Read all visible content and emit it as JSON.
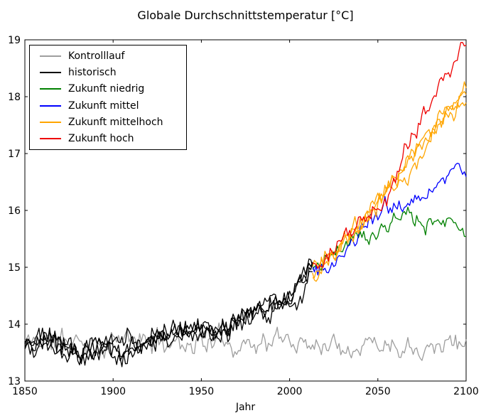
{
  "chart_data": {
    "type": "line",
    "title": "Globale Durchschnittstemperatur [°C]",
    "xlabel": "Jahr",
    "ylabel": "",
    "xlim": [
      1850,
      2100
    ],
    "ylim": [
      13,
      19
    ],
    "xticks": [
      1850,
      1900,
      1950,
      2000,
      2050,
      2100
    ],
    "yticks": [
      13,
      14,
      15,
      16,
      17,
      18,
      19
    ],
    "grid": false,
    "legend_position": "upper left",
    "background": "#ffffff",
    "frame_color": "#000000",
    "legend": [
      {
        "label": "Kontrolllauf",
        "color": "#9e9e9e"
      },
      {
        "label": "historisch",
        "color": "#000000"
      },
      {
        "label": "Zukunft niedrig",
        "color": "#008000"
      },
      {
        "label": "Zukunft mittel",
        "color": "#0000ff"
      },
      {
        "label": "Zukunft mittelhoch",
        "color": "#ffa500"
      },
      {
        "label": "Zukunft hoch",
        "color": "#ee0000"
      }
    ],
    "series": [
      {
        "name": "kontrolllauf",
        "label": "Kontrolllauf",
        "color": "#9e9e9e",
        "seed": 11,
        "noise": 1.0,
        "offset": 0,
        "range": [
          1850,
          2100
        ],
        "anchors": [
          [
            1850,
            13.7
          ],
          [
            2100,
            13.7
          ]
        ]
      },
      {
        "name": "historisch-1",
        "label": "historisch",
        "color": "#000000",
        "seed": 47,
        "noise": 1.0,
        "offset": -0.05,
        "range": [
          1850,
          2013
        ],
        "anchors": [
          [
            1850,
            13.66
          ],
          [
            1861,
            13.74
          ],
          [
            1872,
            13.6
          ],
          [
            1884,
            13.52
          ],
          [
            1895,
            13.66
          ],
          [
            1906,
            13.6
          ],
          [
            1916,
            13.66
          ],
          [
            1926,
            13.76
          ],
          [
            1936,
            13.84
          ],
          [
            1946,
            13.9
          ],
          [
            1956,
            13.94
          ],
          [
            1966,
            14.0
          ],
          [
            1976,
            14.12
          ],
          [
            1986,
            14.28
          ],
          [
            1996,
            14.46
          ],
          [
            2004,
            14.6
          ],
          [
            2013,
            14.95
          ]
        ]
      },
      {
        "name": "historisch-2",
        "label": "historisch",
        "color": "#000000",
        "seed": 83,
        "noise": 1.0,
        "offset": 0,
        "range": [
          1850,
          2013
        ],
        "anchors": [
          [
            1850,
            13.66
          ],
          [
            1861,
            13.74
          ],
          [
            1872,
            13.6
          ],
          [
            1884,
            13.52
          ],
          [
            1895,
            13.66
          ],
          [
            1906,
            13.6
          ],
          [
            1916,
            13.66
          ],
          [
            1926,
            13.76
          ],
          [
            1936,
            13.84
          ],
          [
            1946,
            13.9
          ],
          [
            1956,
            13.94
          ],
          [
            1966,
            14.0
          ],
          [
            1976,
            14.12
          ],
          [
            1986,
            14.28
          ],
          [
            1996,
            14.46
          ],
          [
            2004,
            14.6
          ],
          [
            2013,
            14.95
          ]
        ]
      },
      {
        "name": "historisch-3",
        "label": "historisch",
        "color": "#000000",
        "seed": 129,
        "noise": 1.0,
        "offset": 0.05,
        "range": [
          1850,
          2013
        ],
        "anchors": [
          [
            1850,
            13.66
          ],
          [
            1861,
            13.74
          ],
          [
            1872,
            13.6
          ],
          [
            1884,
            13.52
          ],
          [
            1895,
            13.66
          ],
          [
            1906,
            13.6
          ],
          [
            1916,
            13.66
          ],
          [
            1926,
            13.76
          ],
          [
            1936,
            13.84
          ],
          [
            1946,
            13.9
          ],
          [
            1956,
            13.94
          ],
          [
            1966,
            14.0
          ],
          [
            1976,
            14.12
          ],
          [
            1986,
            14.28
          ],
          [
            1996,
            14.46
          ],
          [
            2004,
            14.6
          ],
          [
            2013,
            14.95
          ]
        ]
      },
      {
        "name": "historisch-4",
        "label": "historisch",
        "color": "#000000",
        "seed": 215,
        "noise": 1.0,
        "offset": -0.02,
        "range": [
          1850,
          2013
        ],
        "anchors": [
          [
            1850,
            13.66
          ],
          [
            1861,
            13.74
          ],
          [
            1872,
            13.6
          ],
          [
            1884,
            13.52
          ],
          [
            1895,
            13.66
          ],
          [
            1906,
            13.6
          ],
          [
            1916,
            13.66
          ],
          [
            1926,
            13.76
          ],
          [
            1936,
            13.84
          ],
          [
            1946,
            13.9
          ],
          [
            1956,
            13.94
          ],
          [
            1966,
            14.0
          ],
          [
            1976,
            14.12
          ],
          [
            1986,
            14.28
          ],
          [
            1996,
            14.46
          ],
          [
            2004,
            14.6
          ],
          [
            2013,
            14.95
          ]
        ]
      },
      {
        "name": "zukunft-niedrig",
        "label": "Zukunft niedrig",
        "color": "#008000",
        "seed": 321,
        "noise": 0.85,
        "offset": 0,
        "range": [
          2013,
          2100
        ],
        "anchors": [
          [
            2013,
            14.95
          ],
          [
            2025,
            15.28
          ],
          [
            2040,
            15.55
          ],
          [
            2055,
            15.72
          ],
          [
            2068,
            15.82
          ],
          [
            2080,
            15.8
          ],
          [
            2090,
            15.68
          ],
          [
            2100,
            15.6
          ]
        ]
      },
      {
        "name": "zukunft-mittel",
        "label": "Zukunft mittel",
        "color": "#0000ff",
        "seed": 407,
        "noise": 0.9,
        "offset": 0,
        "range": [
          2013,
          2100
        ],
        "anchors": [
          [
            2013,
            14.95
          ],
          [
            2025,
            15.2
          ],
          [
            2040,
            15.6
          ],
          [
            2055,
            16.0
          ],
          [
            2070,
            16.25
          ],
          [
            2082,
            16.42
          ],
          [
            2091,
            16.78
          ],
          [
            2096,
            16.55
          ],
          [
            2100,
            16.6
          ]
        ]
      },
      {
        "name": "zukunft-mittelhoch-1",
        "label": "Zukunft mittelhoch",
        "color": "#ffa500",
        "seed": 555,
        "noise": 0.85,
        "offset": -0.06,
        "range": [
          2013,
          2100
        ],
        "anchors": [
          [
            2013,
            14.95
          ],
          [
            2025,
            15.3
          ],
          [
            2040,
            15.75
          ],
          [
            2055,
            16.3
          ],
          [
            2070,
            16.9
          ],
          [
            2085,
            17.55
          ],
          [
            2100,
            18.1
          ]
        ]
      },
      {
        "name": "zukunft-mittelhoch-2",
        "label": "Zukunft mittelhoch",
        "color": "#ffa500",
        "seed": 671,
        "noise": 0.85,
        "offset": 0,
        "range": [
          2013,
          2100
        ],
        "anchors": [
          [
            2013,
            14.95
          ],
          [
            2025,
            15.3
          ],
          [
            2040,
            15.75
          ],
          [
            2055,
            16.3
          ],
          [
            2070,
            16.9
          ],
          [
            2085,
            17.55
          ],
          [
            2100,
            18.1
          ]
        ]
      },
      {
        "name": "zukunft-mittelhoch-3",
        "label": "Zukunft mittelhoch",
        "color": "#ffa500",
        "seed": 713,
        "noise": 0.85,
        "offset": 0.06,
        "range": [
          2013,
          2100
        ],
        "anchors": [
          [
            2013,
            14.95
          ],
          [
            2025,
            15.3
          ],
          [
            2040,
            15.75
          ],
          [
            2055,
            16.3
          ],
          [
            2070,
            16.9
          ],
          [
            2085,
            17.55
          ],
          [
            2100,
            18.1
          ]
        ]
      },
      {
        "name": "zukunft-hoch",
        "label": "Zukunft hoch",
        "color": "#ee0000",
        "seed": 999,
        "noise": 0.9,
        "offset": 0,
        "range": [
          2013,
          2100
        ],
        "anchors": [
          [
            2013,
            14.95
          ],
          [
            2025,
            15.35
          ],
          [
            2040,
            15.85
          ],
          [
            2050,
            16.1
          ],
          [
            2060,
            16.7
          ],
          [
            2070,
            17.35
          ],
          [
            2080,
            17.9
          ],
          [
            2088,
            18.6
          ],
          [
            2091,
            18.45
          ],
          [
            2100,
            18.95
          ]
        ]
      }
    ]
  }
}
